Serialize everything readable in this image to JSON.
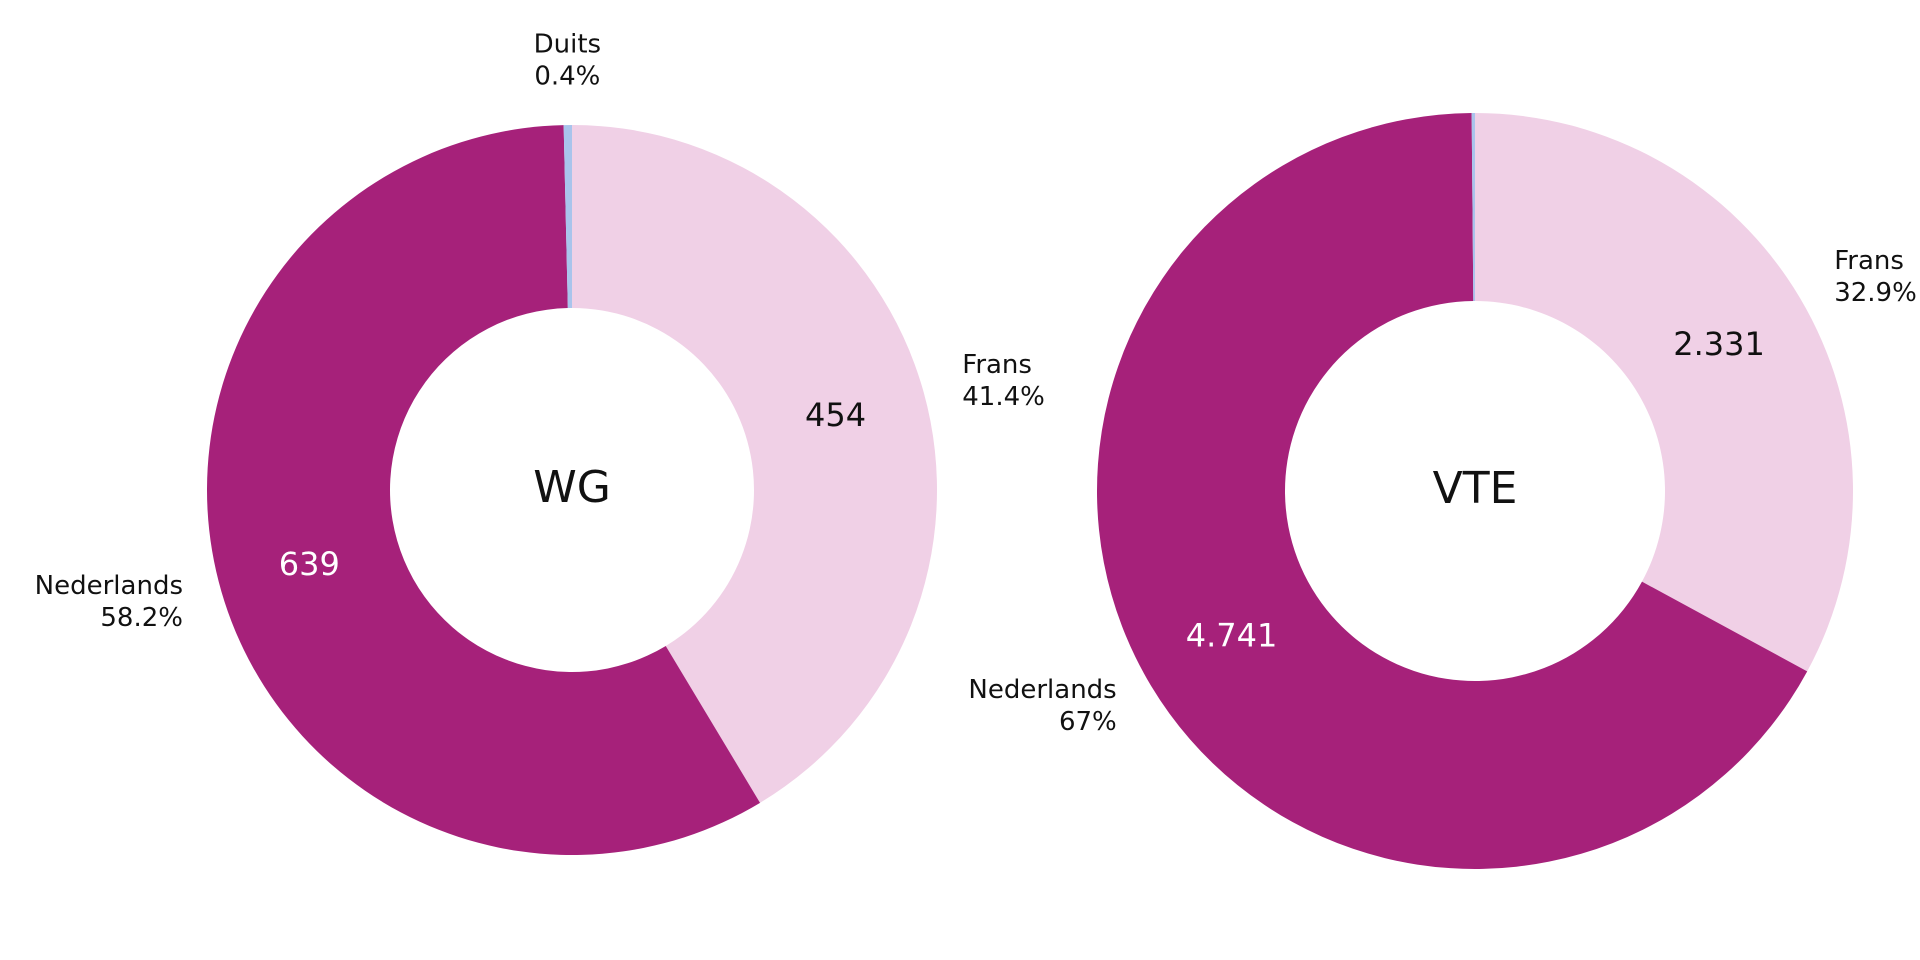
{
  "chart_data": [
    {
      "type": "donut",
      "title": "WG",
      "categories": [
        "Frans",
        "Nederlands",
        "Duits"
      ],
      "values": [
        454,
        639,
        4
      ],
      "value_labels": [
        "454",
        "639",
        null
      ],
      "percent_labels": [
        "41.4%",
        "58.2%",
        "0.4%"
      ],
      "colors": [
        "#f0d0e6",
        "#a6217a",
        "#a9c4ec"
      ]
    },
    {
      "type": "donut",
      "title": "VTE",
      "categories": [
        "Frans",
        "Nederlands",
        null
      ],
      "values": [
        2331,
        4741,
        10
      ],
      "value_labels": [
        "2.331",
        "4.741",
        null
      ],
      "percent_labels": [
        "32.9%",
        "67%",
        null
      ],
      "colors": [
        "#f0d0e6",
        "#a6217a",
        "#a9c4ec"
      ]
    }
  ]
}
